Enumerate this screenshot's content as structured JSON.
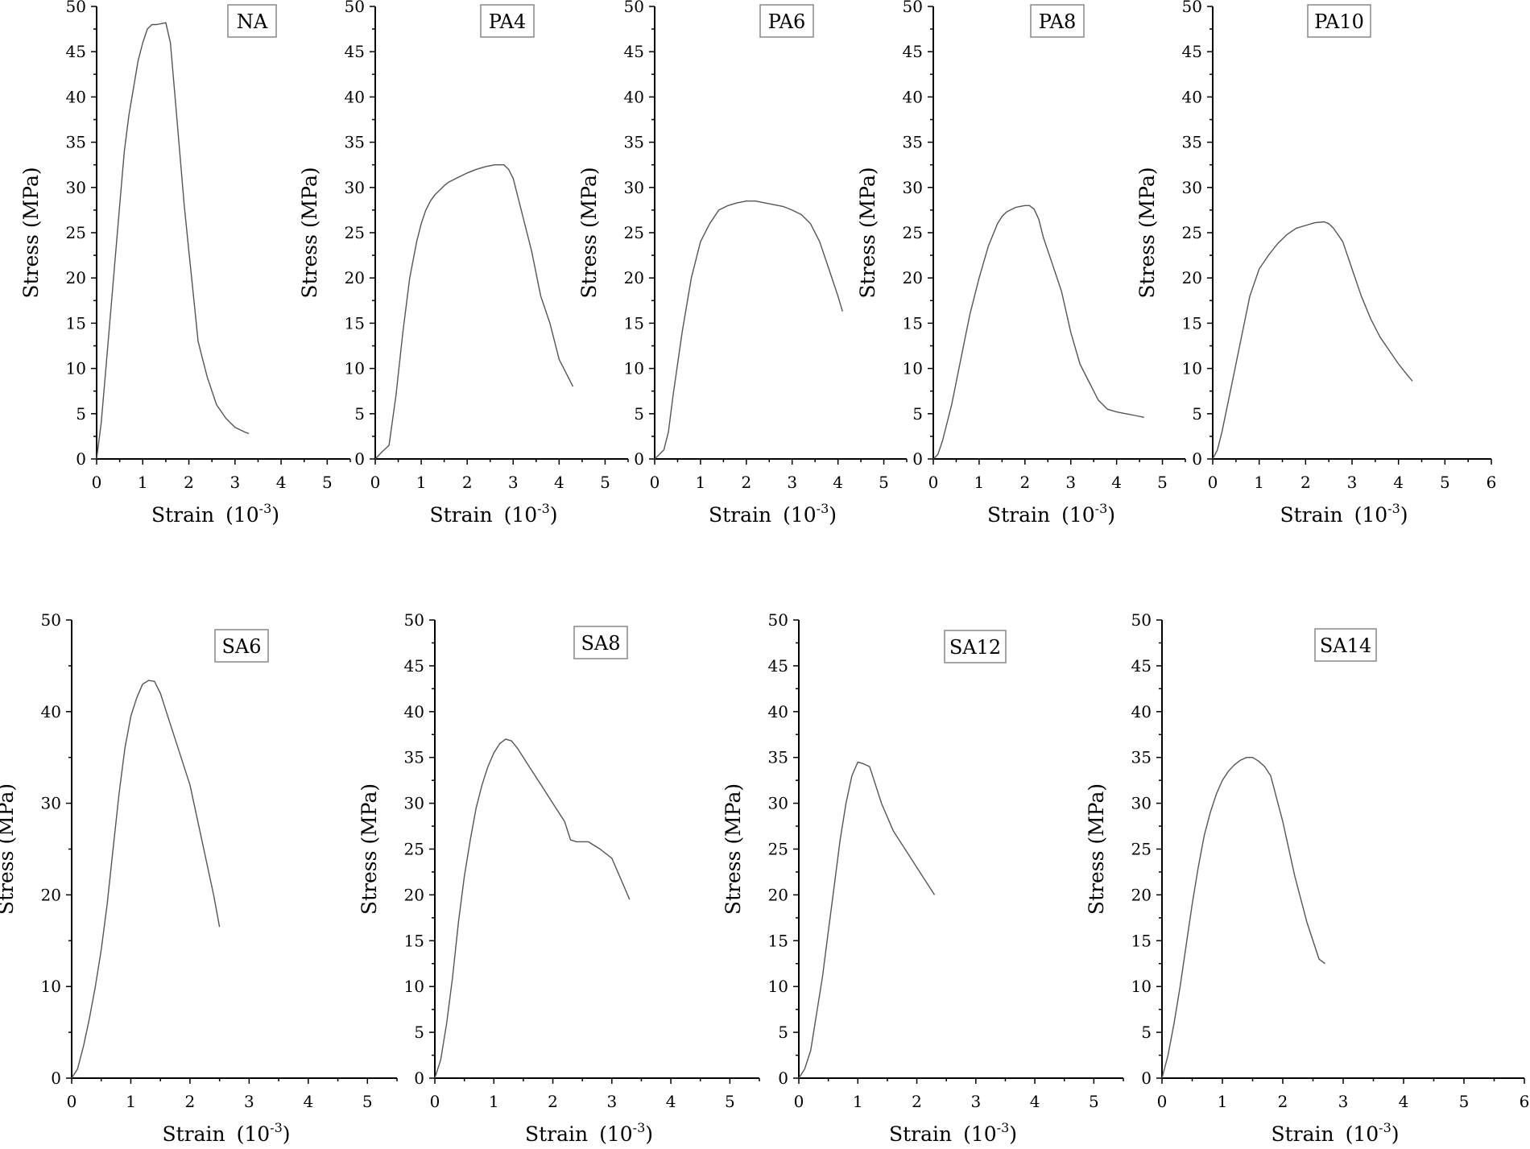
{
  "chart_data": [
    {
      "type": "line",
      "name": "NA",
      "xlabel": "Strain",
      "xlabel_unit": "(10",
      "xlabel_exp": "-3",
      "xlabel_close": ")",
      "ylabel": "Stress (MPa)",
      "xlim": [
        0,
        5.5
      ],
      "ylim": [
        0,
        50
      ],
      "xticks": [
        0,
        1,
        2,
        3,
        4,
        5
      ],
      "yticks": [
        0,
        5,
        10,
        15,
        20,
        25,
        30,
        35,
        40,
        45,
        50
      ],
      "legend": "top-right",
      "x": [
        0,
        0.1,
        0.2,
        0.3,
        0.4,
        0.5,
        0.6,
        0.7,
        0.8,
        0.9,
        1.0,
        1.1,
        1.2,
        1.3,
        1.4,
        1.5,
        1.6,
        1.7,
        1.8,
        1.9,
        2.0,
        2.1,
        2.2,
        2.3,
        2.4,
        2.6,
        2.8,
        3.0,
        3.2,
        3.3
      ],
      "y": [
        0,
        4,
        10,
        16,
        22,
        28,
        34,
        38,
        41,
        44,
        46,
        47.5,
        48,
        48,
        48.1,
        48.2,
        46,
        40,
        34,
        28,
        23,
        18,
        13,
        11,
        9,
        6,
        4.5,
        3.5,
        3,
        2.8
      ]
    },
    {
      "type": "line",
      "name": "PA4",
      "xlabel": "Strain",
      "xlabel_unit": "(10",
      "xlabel_exp": "-3",
      "xlabel_close": ")",
      "ylabel": "Stress (MPa)",
      "xlim": [
        0,
        5.5
      ],
      "ylim": [
        0,
        50
      ],
      "xticks": [
        0,
        1,
        2,
        3,
        4,
        5
      ],
      "yticks": [
        0,
        5,
        10,
        15,
        20,
        25,
        30,
        35,
        40,
        45,
        50
      ],
      "legend": "top-right",
      "x": [
        0,
        0.15,
        0.3,
        0.45,
        0.6,
        0.75,
        0.9,
        1.0,
        1.1,
        1.2,
        1.3,
        1.4,
        1.5,
        1.6,
        1.8,
        2.0,
        2.2,
        2.4,
        2.6,
        2.8,
        2.9,
        3.0,
        3.1,
        3.2,
        3.4,
        3.6,
        3.8,
        4.0,
        4.2,
        4.3
      ],
      "y": [
        0,
        0.8,
        1.5,
        7,
        14,
        20,
        24,
        26,
        27.5,
        28.5,
        29.2,
        29.7,
        30.2,
        30.6,
        31.1,
        31.6,
        32,
        32.3,
        32.5,
        32.5,
        32,
        31,
        29,
        27,
        23,
        18,
        15,
        11,
        9,
        8
      ]
    },
    {
      "type": "line",
      "name": "PA6",
      "xlabel": "Strain",
      "xlabel_unit": "(10",
      "xlabel_exp": "-3",
      "xlabel_close": ")",
      "ylabel": "Stress (MPa)",
      "xlim": [
        0,
        5.5
      ],
      "ylim": [
        0,
        50
      ],
      "xticks": [
        0,
        1,
        2,
        3,
        4,
        5
      ],
      "yticks": [
        0,
        5,
        10,
        15,
        20,
        25,
        30,
        35,
        40,
        45,
        50
      ],
      "legend": "top-right",
      "x": [
        0,
        0.2,
        0.3,
        0.4,
        0.6,
        0.8,
        1.0,
        1.2,
        1.4,
        1.6,
        1.8,
        2.0,
        2.2,
        2.4,
        2.6,
        2.8,
        3.0,
        3.2,
        3.4,
        3.6,
        3.8,
        4.0,
        4.1
      ],
      "y": [
        0,
        1,
        3,
        7,
        14,
        20,
        24,
        26,
        27.5,
        28,
        28.3,
        28.5,
        28.5,
        28.3,
        28.1,
        27.9,
        27.5,
        27,
        26,
        24,
        21,
        18,
        16.3
      ]
    },
    {
      "type": "line",
      "name": "PA8",
      "xlabel": "Strain",
      "xlabel_unit": "(10",
      "xlabel_exp": "-3",
      "xlabel_close": ")",
      "ylabel": "Stress (MPa)",
      "xlim": [
        0,
        5.5
      ],
      "ylim": [
        0,
        50
      ],
      "xticks": [
        0,
        1,
        2,
        3,
        4,
        5
      ],
      "yticks": [
        0,
        5,
        10,
        15,
        20,
        25,
        30,
        35,
        40,
        45,
        50
      ],
      "legend": "top-right",
      "x": [
        0,
        0.1,
        0.2,
        0.4,
        0.6,
        0.8,
        1.0,
        1.2,
        1.4,
        1.5,
        1.6,
        1.8,
        2.0,
        2.1,
        2.2,
        2.3,
        2.4,
        2.6,
        2.8,
        3.0,
        3.2,
        3.4,
        3.6,
        3.8,
        4.0,
        4.2,
        4.4,
        4.6
      ],
      "y": [
        0,
        0.5,
        2,
        6,
        11,
        16,
        20,
        23.5,
        26,
        26.8,
        27.3,
        27.8,
        28,
        28,
        27.6,
        26.5,
        24.5,
        21.5,
        18.5,
        14,
        10.5,
        8.5,
        6.5,
        5.5,
        5.2,
        5,
        4.8,
        4.6
      ]
    },
    {
      "type": "line",
      "name": "PA10",
      "xlabel": "Strain",
      "xlabel_unit": "(10",
      "xlabel_exp": "-3",
      "xlabel_close": ")",
      "ylabel": "Stress (MPa)",
      "xlim": [
        0,
        6
      ],
      "ylim": [
        0,
        50
      ],
      "xticks": [
        0,
        1,
        2,
        3,
        4,
        5,
        6
      ],
      "yticks": [
        0,
        5,
        10,
        15,
        20,
        25,
        30,
        35,
        40,
        45,
        50
      ],
      "legend": "top-right",
      "x": [
        0,
        0.1,
        0.2,
        0.4,
        0.6,
        0.8,
        1.0,
        1.2,
        1.4,
        1.6,
        1.8,
        2.0,
        2.2,
        2.4,
        2.5,
        2.6,
        2.8,
        3.0,
        3.2,
        3.4,
        3.6,
        3.8,
        4.0,
        4.2,
        4.3
      ],
      "y": [
        0,
        1,
        3,
        8,
        13,
        18,
        21,
        22.5,
        23.8,
        24.8,
        25.5,
        25.8,
        26.1,
        26.2,
        26,
        25.5,
        24,
        21,
        18,
        15.5,
        13.5,
        12,
        10.5,
        9.2,
        8.6
      ]
    },
    {
      "type": "line",
      "name": "SA6",
      "xlabel": "Strain",
      "xlabel_unit": "(10",
      "xlabel_exp": "-3",
      "xlabel_close": ")",
      "ylabel": "Stress (MPa)",
      "xlim": [
        0,
        5.5
      ],
      "ylim": [
        0,
        50
      ],
      "xticks": [
        0,
        1,
        2,
        3,
        4,
        5
      ],
      "yticks": [
        0,
        10,
        20,
        30,
        40,
        50
      ],
      "legend": "top-right",
      "x": [
        0,
        0.1,
        0.2,
        0.3,
        0.4,
        0.5,
        0.6,
        0.7,
        0.8,
        0.9,
        1.0,
        1.1,
        1.2,
        1.3,
        1.4,
        1.5,
        1.6,
        1.8,
        2.0,
        2.2,
        2.4,
        2.5
      ],
      "y": [
        0,
        1,
        3.5,
        6.5,
        10,
        14,
        19,
        25,
        31,
        36,
        39.5,
        41.5,
        43,
        43.4,
        43.3,
        42,
        40,
        36,
        32,
        26,
        20,
        16.5
      ]
    },
    {
      "type": "line",
      "name": "SA8",
      "xlabel": "Strain",
      "xlabel_unit": "(10",
      "xlabel_exp": "-3",
      "xlabel_close": ")",
      "ylabel": "Stress (MPa)",
      "xlim": [
        0,
        5.5
      ],
      "ylim": [
        0,
        50
      ],
      "xticks": [
        0,
        1,
        2,
        3,
        4,
        5
      ],
      "yticks": [
        0,
        5,
        10,
        15,
        20,
        25,
        30,
        35,
        40,
        45,
        50
      ],
      "legend": "top-right",
      "x": [
        0,
        0.1,
        0.2,
        0.3,
        0.4,
        0.5,
        0.6,
        0.7,
        0.8,
        0.9,
        1.0,
        1.1,
        1.2,
        1.3,
        1.4,
        1.6,
        1.8,
        2.0,
        2.2,
        2.3,
        2.4,
        2.6,
        2.8,
        3.0,
        3.2,
        3.3
      ],
      "y": [
        0,
        2,
        6,
        11,
        17,
        22,
        26,
        29.5,
        32,
        34,
        35.5,
        36.5,
        37,
        36.8,
        36,
        34,
        32,
        30,
        28,
        26,
        25.8,
        25.8,
        25,
        24,
        21,
        19.5
      ]
    },
    {
      "type": "line",
      "name": "SA12",
      "xlabel": "Strain",
      "xlabel_unit": "(10",
      "xlabel_exp": "-3",
      "xlabel_close": ")",
      "ylabel": "Stress (MPa)",
      "xlim": [
        0,
        5.5
      ],
      "ylim": [
        0,
        50
      ],
      "xticks": [
        0,
        1,
        2,
        3,
        4,
        5
      ],
      "yticks": [
        0,
        5,
        10,
        15,
        20,
        25,
        30,
        35,
        40,
        45,
        50
      ],
      "legend": "top-right",
      "x": [
        0,
        0.1,
        0.2,
        0.3,
        0.4,
        0.5,
        0.6,
        0.7,
        0.8,
        0.9,
        1.0,
        1.1,
        1.2,
        1.3,
        1.4,
        1.6,
        1.8,
        2.0,
        2.2,
        2.3
      ],
      "y": [
        0,
        1,
        3,
        7,
        11,
        16,
        21,
        26,
        30,
        33,
        34.5,
        34.3,
        34,
        32,
        30,
        27,
        25,
        23,
        21,
        20
      ]
    },
    {
      "type": "line",
      "name": "SA14",
      "xlabel": "Strain",
      "xlabel_unit": "(10",
      "xlabel_exp": "-3",
      "xlabel_close": ")",
      "ylabel": "Stress (MPa)",
      "xlim": [
        0,
        6
      ],
      "ylim": [
        0,
        50
      ],
      "xticks": [
        0,
        1,
        2,
        3,
        4,
        5,
        6
      ],
      "yticks": [
        0,
        5,
        10,
        15,
        20,
        25,
        30,
        35,
        40,
        45,
        50
      ],
      "legend": "top-right",
      "x": [
        0,
        0.1,
        0.2,
        0.3,
        0.4,
        0.5,
        0.6,
        0.7,
        0.8,
        0.9,
        1.0,
        1.1,
        1.2,
        1.3,
        1.4,
        1.5,
        1.6,
        1.7,
        1.8,
        2.0,
        2.2,
        2.4,
        2.6,
        2.7
      ],
      "y": [
        0,
        2.5,
        6,
        10,
        14.5,
        19,
        23,
        26.5,
        29,
        31,
        32.5,
        33.5,
        34.2,
        34.7,
        35,
        35,
        34.6,
        34,
        33,
        28,
        22,
        17,
        13,
        12.5
      ]
    }
  ]
}
